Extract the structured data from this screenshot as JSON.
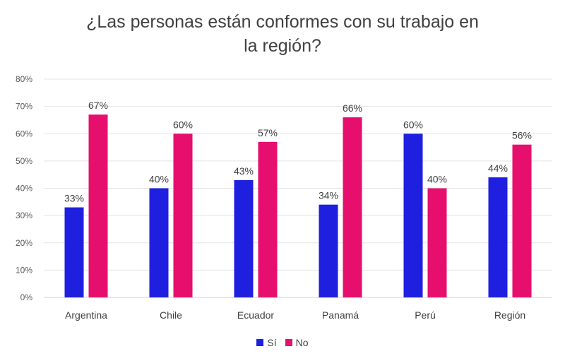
{
  "chart_data": {
    "type": "bar",
    "title": "¿Las personas están conformes con su trabajo en la región?",
    "title_lines": [
      "¿Las personas están conformes con su trabajo en",
      "la región?"
    ],
    "categories": [
      "Argentina",
      "Chile",
      "Ecuador",
      "Panamá",
      "Perú",
      "Región"
    ],
    "series": [
      {
        "name": "Sí",
        "color": "#1f1fe0",
        "values": [
          33,
          40,
          43,
          34,
          60,
          44
        ],
        "labels": [
          "33%",
          "40%",
          "43%",
          "34%",
          "60%",
          "44%"
        ]
      },
      {
        "name": "No",
        "color": "#e60f6e",
        "values": [
          67,
          60,
          57,
          66,
          40,
          56
        ],
        "labels": [
          "67%",
          "60%",
          "57%",
          "66%",
          "40%",
          "56%"
        ]
      }
    ],
    "ylim": [
      0,
      80
    ],
    "yticks": [
      0,
      10,
      20,
      30,
      40,
      50,
      60,
      70,
      80
    ],
    "ytick_labels": [
      "0%",
      "10%",
      "20%",
      "30%",
      "40%",
      "50%",
      "60%",
      "70%",
      "80%"
    ],
    "grid": true,
    "legend_position": "bottom"
  }
}
